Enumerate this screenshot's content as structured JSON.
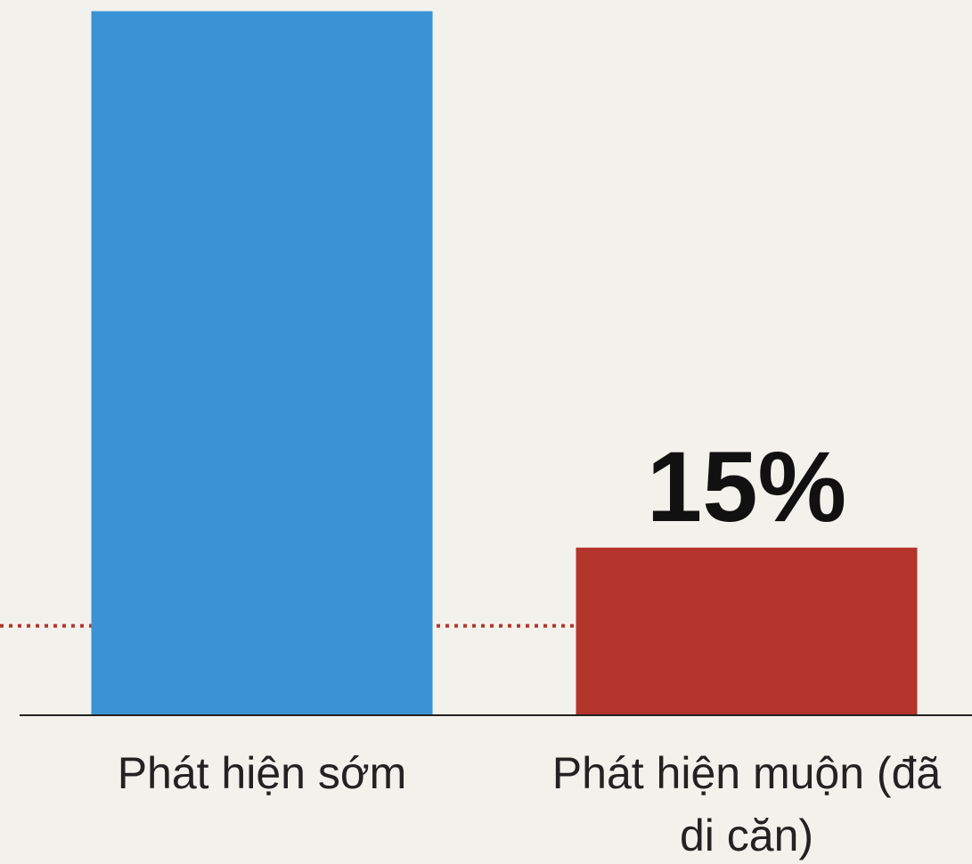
{
  "chart_data": {
    "type": "bar",
    "categories": [
      "Phát hiện sớm",
      "Phát hiện muộn (đã di căn)"
    ],
    "values": [
      63,
      15
    ],
    "value_labels": [
      null,
      "15%"
    ],
    "colors": [
      "#3a93d4",
      "#b3342a"
    ],
    "ylim": [
      0,
      64
    ],
    "reference_line": {
      "value": 8,
      "color": "#b3342a"
    }
  }
}
